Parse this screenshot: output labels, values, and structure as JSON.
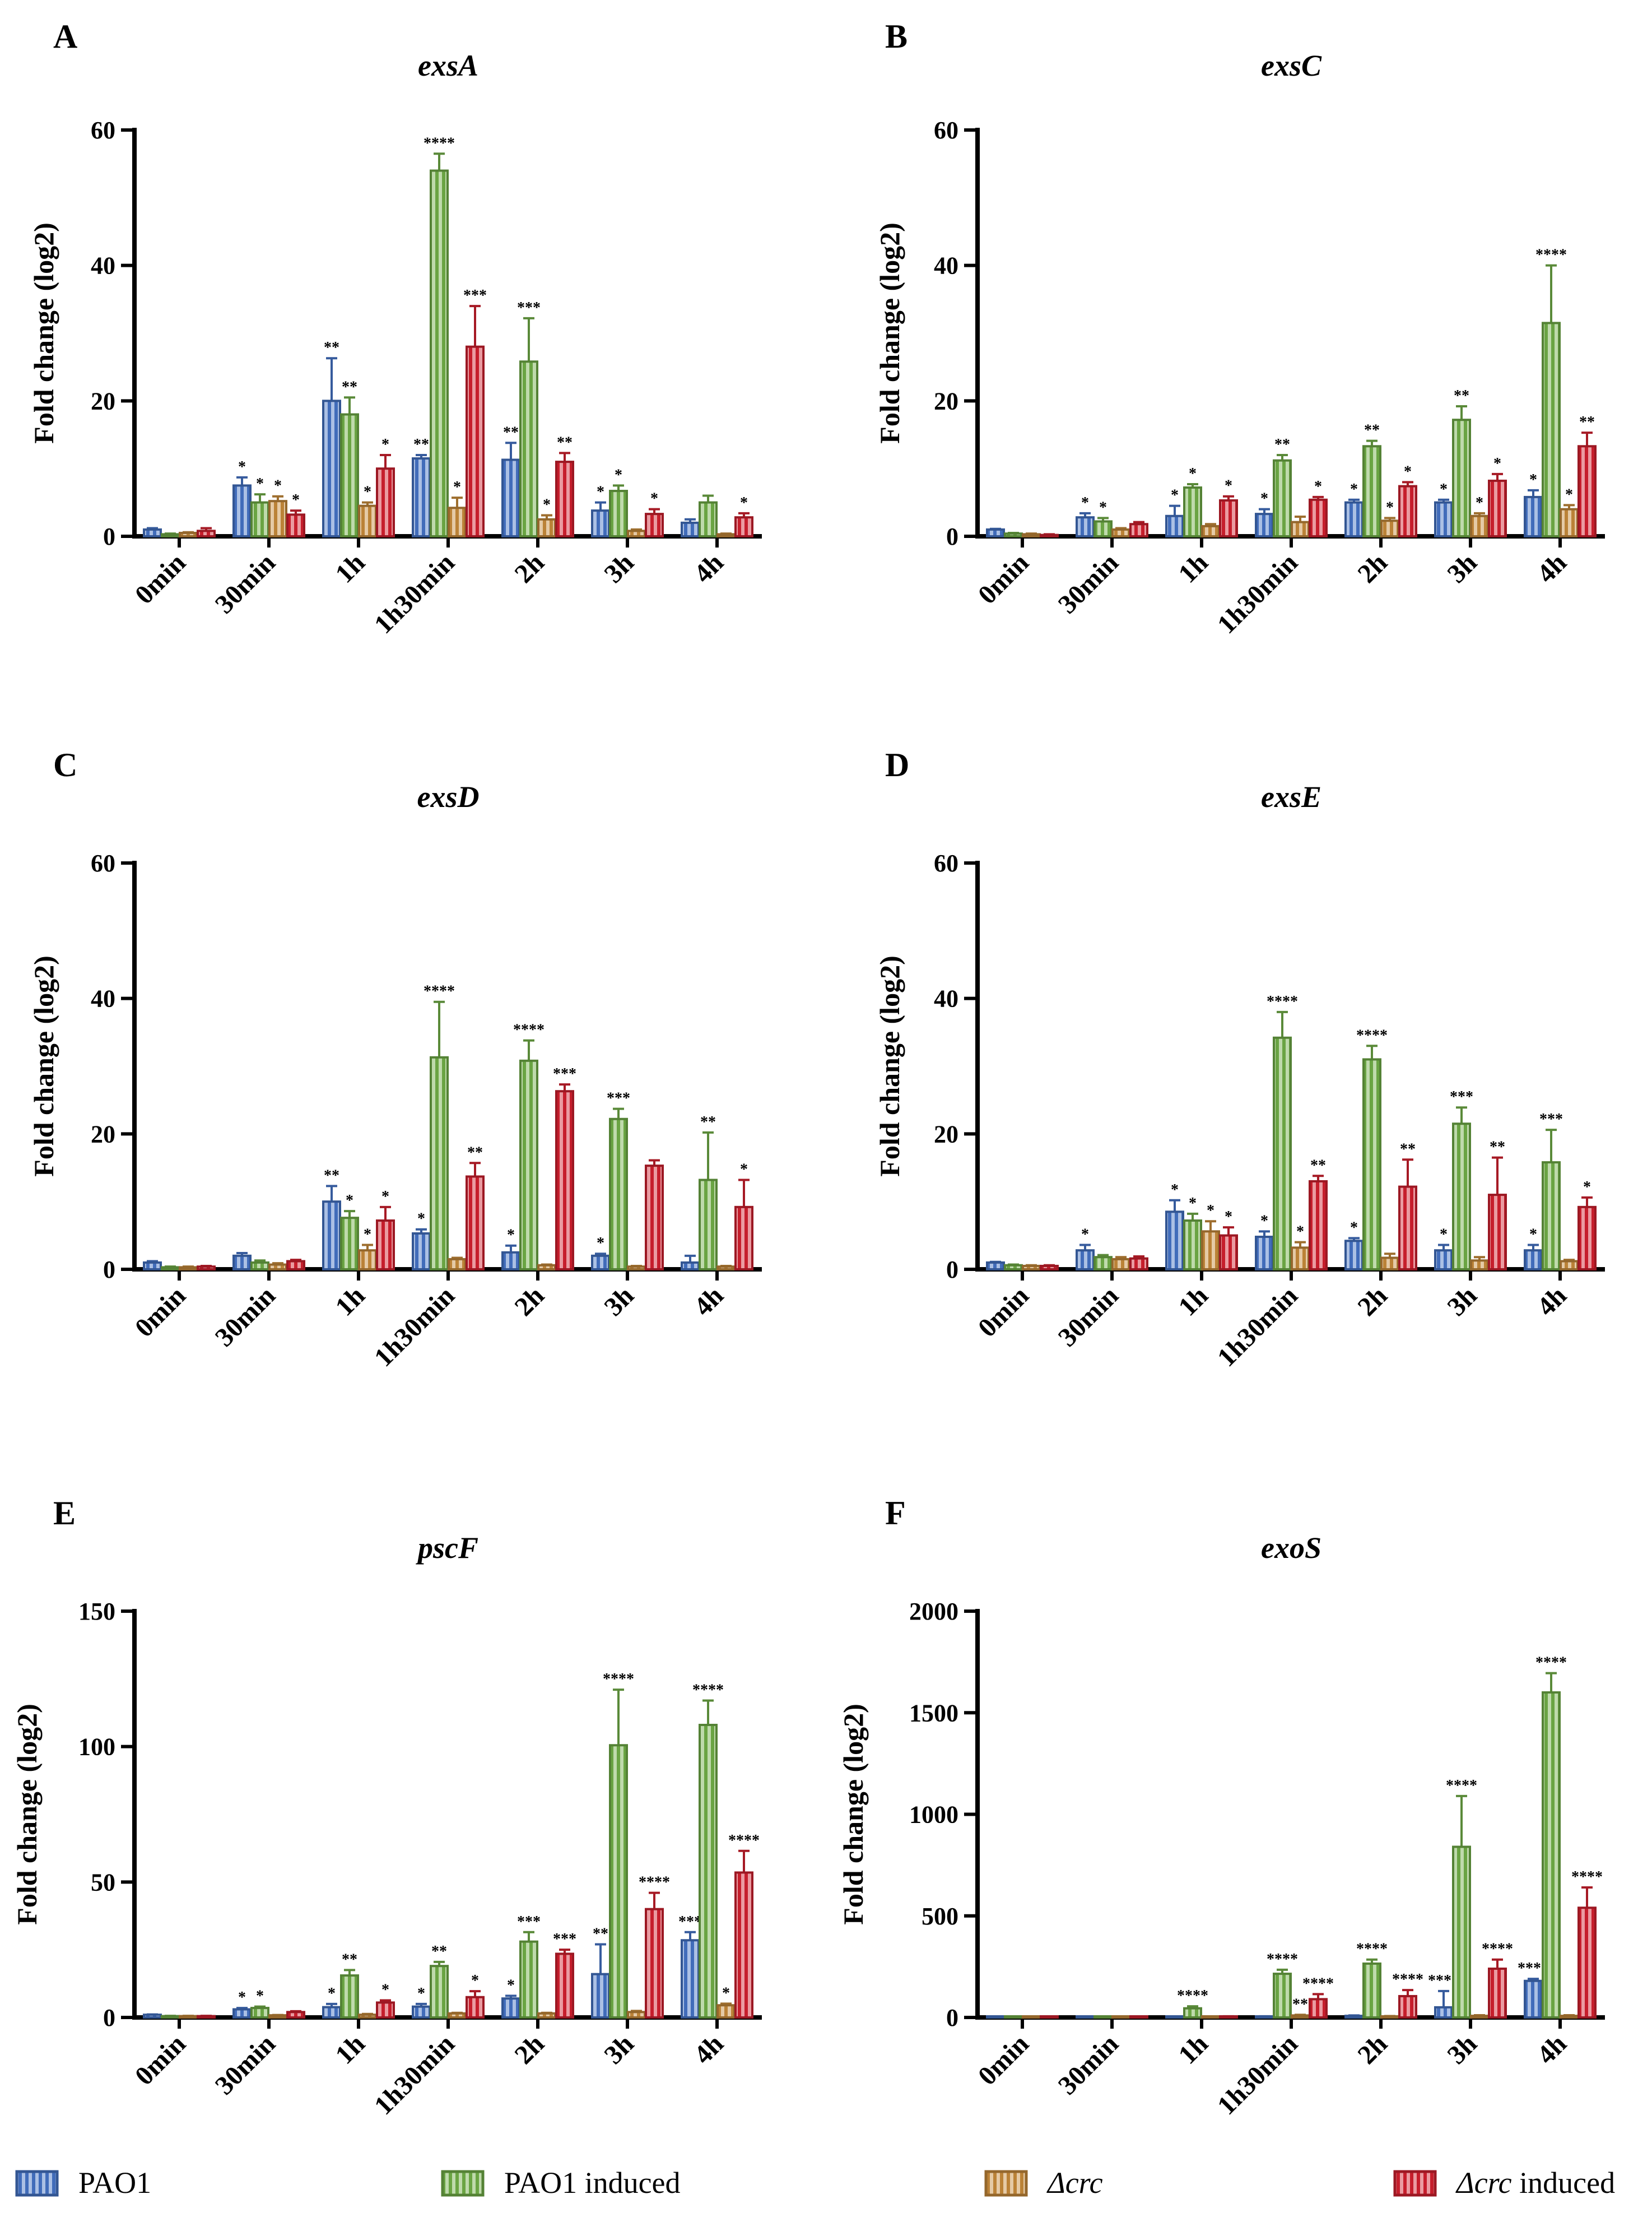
{
  "colors": {
    "PAO1": "#4472c4",
    "PAO1 induced": "#70ad47",
    "Δcrc": "#c5893a",
    "Δcrc induced": "#d0202e"
  },
  "legend": [
    {
      "label": "PAO1",
      "italic": ""
    },
    {
      "label": " induced",
      "italic": "",
      "prefix": "PAO1"
    },
    {
      "label": "",
      "italic": "Δcrc"
    },
    {
      "label": " induced",
      "italic": "Δcrc"
    }
  ],
  "legend_labels": {
    "pao1": "PAO1",
    "pao1_induced": "PAO1 induced",
    "crc_italic": "Δcrc",
    "crc_induced_italic": "Δcrc",
    "crc_induced_rest": " induced"
  },
  "chart_data": [
    {
      "panel": "A",
      "title": "exsA",
      "type": "bar",
      "ylabel": "Fold change (log2)",
      "ylim": [
        0,
        60
      ],
      "yticks": [
        0,
        20,
        40,
        60
      ],
      "categories": [
        "0min",
        "30min",
        "1h",
        "1h30min",
        "2h",
        "3h",
        "4h"
      ],
      "series": [
        {
          "name": "PAO1",
          "values": [
            1,
            7.5,
            20,
            11.5,
            11.3,
            3.8,
            2
          ],
          "err": [
            0.2,
            1.2,
            6.3,
            0.5,
            2.5,
            1.2,
            0.5
          ],
          "sig": [
            "",
            "*",
            "**",
            "**",
            "**",
            "*",
            ""
          ]
        },
        {
          "name": "PAO1 induced",
          "values": [
            0.3,
            5,
            18,
            54,
            25.8,
            6.7,
            5
          ],
          "err": [
            0.1,
            1.2,
            2.5,
            2.5,
            6.4,
            0.8,
            1
          ],
          "sig": [
            "",
            "*",
            "**",
            "****",
            "***",
            "*",
            ""
          ]
        },
        {
          "name": "Δcrc",
          "values": [
            0.5,
            5.2,
            4.5,
            4.2,
            2.5,
            0.8,
            0.3
          ],
          "err": [
            0.1,
            0.7,
            0.5,
            1.5,
            0.6,
            0.2,
            0.1
          ],
          "sig": [
            "",
            "*",
            "*",
            "*",
            "*",
            "",
            ""
          ]
        },
        {
          "name": "Δcrc induced",
          "values": [
            0.8,
            3.2,
            10,
            28,
            11,
            3.3,
            2.8
          ],
          "err": [
            0.4,
            0.6,
            2,
            6,
            1.3,
            0.7,
            0.6
          ],
          "sig": [
            "",
            "*",
            "*",
            "***",
            "**",
            "*",
            "*"
          ]
        }
      ]
    },
    {
      "panel": "B",
      "title": "exsC",
      "type": "bar",
      "ylabel": "Fold change (log2)",
      "ylim": [
        0,
        60
      ],
      "yticks": [
        0,
        20,
        40,
        60
      ],
      "categories": [
        "0min",
        "30min",
        "1h",
        "1h30min",
        "2h",
        "3h",
        "4h"
      ],
      "series": [
        {
          "name": "PAO1",
          "values": [
            1,
            2.8,
            3,
            3.3,
            5,
            5,
            5.8
          ],
          "err": [
            0.1,
            0.6,
            1.5,
            0.7,
            0.4,
            0.4,
            1
          ],
          "sig": [
            "",
            "*",
            "*",
            "*",
            "*",
            "*",
            "*"
          ]
        },
        {
          "name": "PAO1 induced",
          "values": [
            0.4,
            2.2,
            7.2,
            11.2,
            13.3,
            17.2,
            31.5
          ],
          "err": [
            0.1,
            0.5,
            0.5,
            0.8,
            0.8,
            2,
            8.5
          ],
          "sig": [
            "",
            "*",
            "*",
            "**",
            "**",
            "**",
            "****"
          ]
        },
        {
          "name": "Δcrc",
          "values": [
            0.3,
            1,
            1.5,
            2.1,
            2.3,
            3,
            4
          ],
          "err": [
            0.1,
            0.2,
            0.3,
            0.8,
            0.4,
            0.4,
            0.6
          ],
          "sig": [
            "",
            "",
            "",
            "",
            "*",
            "*",
            "*"
          ]
        },
        {
          "name": "Δcrc induced",
          "values": [
            0.2,
            1.8,
            5.3,
            5.4,
            7.4,
            8.2,
            13.3
          ],
          "err": [
            0.1,
            0.3,
            0.6,
            0.4,
            0.6,
            1,
            2
          ],
          "sig": [
            "",
            "",
            "*",
            "*",
            "*",
            "*",
            "**"
          ]
        }
      ]
    },
    {
      "panel": "C",
      "title": "exsD",
      "type": "bar",
      "ylabel": "Fold change (log2)",
      "ylim": [
        0,
        60
      ],
      "yticks": [
        0,
        20,
        40,
        60
      ],
      "categories": [
        "0min",
        "30min",
        "1h",
        "1h30min",
        "2h",
        "3h",
        "4h"
      ],
      "series": [
        {
          "name": "PAO1",
          "values": [
            1,
            2,
            10,
            5.3,
            2.5,
            2,
            1
          ],
          "err": [
            0.2,
            0.4,
            2.3,
            0.6,
            1,
            0.3,
            1
          ],
          "sig": [
            "",
            "",
            "**",
            "*",
            "*",
            "*",
            ""
          ]
        },
        {
          "name": "PAO1 induced",
          "values": [
            0.3,
            1,
            7.6,
            31.3,
            30.8,
            22.2,
            13.2
          ],
          "err": [
            0.1,
            0.3,
            1,
            8.2,
            3,
            1.5,
            7
          ],
          "sig": [
            "",
            "",
            "*",
            "****",
            "****",
            "***",
            "**"
          ]
        },
        {
          "name": "Δcrc",
          "values": [
            0.3,
            0.7,
            2.8,
            1.5,
            0.6,
            0.4,
            0.4
          ],
          "err": [
            0.1,
            0.2,
            0.8,
            0.2,
            0.1,
            0.1,
            0.1
          ],
          "sig": [
            "",
            "",
            "*",
            "",
            "",
            "",
            ""
          ]
        },
        {
          "name": "Δcrc induced",
          "values": [
            0.4,
            1.2,
            7.2,
            13.7,
            26.3,
            15.3,
            9.2
          ],
          "err": [
            0.1,
            0.2,
            2,
            2,
            1,
            0.8,
            4
          ],
          "sig": [
            "",
            "",
            "*",
            "**",
            "***",
            "",
            "*"
          ]
        }
      ]
    },
    {
      "panel": "D",
      "title": "exsE",
      "type": "bar",
      "ylabel": "Fold change (log2)",
      "ylim": [
        0,
        60
      ],
      "yticks": [
        0,
        20,
        40,
        60
      ],
      "categories": [
        "0min",
        "30min",
        "1h",
        "1h30min",
        "2h",
        "3h",
        "4h"
      ],
      "series": [
        {
          "name": "PAO1",
          "values": [
            1,
            2.8,
            8.5,
            4.8,
            4.2,
            2.8,
            2.8
          ],
          "err": [
            0.1,
            0.8,
            1.7,
            0.8,
            0.4,
            0.8,
            0.8
          ],
          "sig": [
            "",
            "*",
            "*",
            "*",
            "*",
            "*",
            "*"
          ]
        },
        {
          "name": "PAO1 induced",
          "values": [
            0.6,
            1.8,
            7.2,
            34.2,
            31,
            21.5,
            15.8
          ],
          "err": [
            0.1,
            0.3,
            1,
            3.8,
            2,
            2.4,
            4.8
          ],
          "sig": [
            "",
            "",
            "*",
            "****",
            "****",
            "***",
            "***"
          ]
        },
        {
          "name": "Δcrc",
          "values": [
            0.5,
            1.5,
            5.6,
            3.2,
            1.7,
            1.3,
            1.2
          ],
          "err": [
            0.1,
            0.3,
            1.5,
            0.8,
            0.6,
            0.5,
            0.2
          ],
          "sig": [
            "",
            "",
            "*",
            "*",
            "",
            "",
            ""
          ]
        },
        {
          "name": "Δcrc induced",
          "values": [
            0.5,
            1.6,
            5,
            13,
            12.2,
            11,
            9.2
          ],
          "err": [
            0.1,
            0.3,
            1.2,
            0.8,
            4,
            5.5,
            1.4
          ],
          "sig": [
            "",
            "",
            "*",
            "**",
            "**",
            "**",
            "*"
          ]
        }
      ]
    },
    {
      "panel": "E",
      "title": "pscF",
      "type": "bar",
      "ylabel": "Fold change (log2)",
      "ylim": [
        0,
        150
      ],
      "yticks": [
        0,
        50,
        100,
        150
      ],
      "categories": [
        "0min",
        "30min",
        "1h",
        "1h30min",
        "2h",
        "3h",
        "4h"
      ],
      "series": [
        {
          "name": "PAO1",
          "values": [
            1,
            3,
            3.8,
            4,
            7,
            16,
            28.5
          ],
          "err": [
            0.1,
            0.5,
            1.2,
            1,
            1,
            11,
            3
          ],
          "sig": [
            "",
            "*",
            "*",
            "*",
            "*",
            "**",
            "***"
          ]
        },
        {
          "name": "PAO1 induced",
          "values": [
            0.5,
            3.5,
            15.5,
            19,
            28,
            100.5,
            108
          ],
          "err": [
            0.1,
            0.5,
            2,
            1.5,
            3.5,
            20.5,
            9
          ],
          "sig": [
            "",
            "*",
            "**",
            "**",
            "***",
            "****",
            "****"
          ]
        },
        {
          "name": "Δcrc",
          "values": [
            0.5,
            0.8,
            1,
            1.5,
            1.5,
            2,
            4.5
          ],
          "err": [
            0.1,
            0.1,
            0.3,
            0.2,
            0.2,
            0.4,
            0.6
          ],
          "sig": [
            "",
            "",
            "",
            "",
            "",
            "",
            "*"
          ]
        },
        {
          "name": "Δcrc induced",
          "values": [
            0.5,
            2,
            5.5,
            7.5,
            23.5,
            40,
            53.5
          ],
          "err": [
            0.1,
            0.3,
            0.8,
            2.2,
            1.5,
            6,
            8
          ],
          "sig": [
            "",
            "",
            "*",
            "*",
            "***",
            "****",
            "****"
          ]
        }
      ]
    },
    {
      "panel": "F",
      "title": "exoS",
      "type": "bar",
      "ylabel": "Fold change (log2)",
      "ylim": [
        0,
        2000
      ],
      "yticks": [
        0,
        500,
        1000,
        1500,
        2000
      ],
      "categories": [
        "0min",
        "30min",
        "1h",
        "1h30min",
        "2h",
        "3h",
        "4h"
      ],
      "series": [
        {
          "name": "PAO1",
          "values": [
            1,
            2,
            4,
            5,
            8,
            50,
            180
          ],
          "err": [
            0,
            0,
            1,
            1,
            2,
            80,
            10
          ],
          "sig": [
            "",
            "",
            "",
            "",
            "",
            "****",
            "****"
          ]
        },
        {
          "name": "PAO1 induced",
          "values": [
            1,
            2,
            45,
            215,
            265,
            840,
            1600
          ],
          "err": [
            0,
            0,
            10,
            20,
            20,
            250,
            95
          ],
          "sig": [
            "",
            "",
            "****",
            "****",
            "****",
            "****",
            "****"
          ]
        },
        {
          "name": "Δcrc",
          "values": [
            1,
            1,
            2,
            10,
            5,
            8,
            8
          ],
          "err": [
            0,
            0,
            1,
            3,
            2,
            3,
            3
          ],
          "sig": [
            "",
            "",
            "",
            "**",
            "",
            "",
            ""
          ]
        },
        {
          "name": "Δcrc induced",
          "values": [
            1,
            2,
            5,
            90,
            105,
            240,
            540
          ],
          "err": [
            0,
            0,
            1,
            25,
            30,
            45,
            100
          ],
          "sig": [
            "",
            "",
            "",
            "****",
            "****",
            "****",
            "****"
          ]
        }
      ]
    }
  ]
}
